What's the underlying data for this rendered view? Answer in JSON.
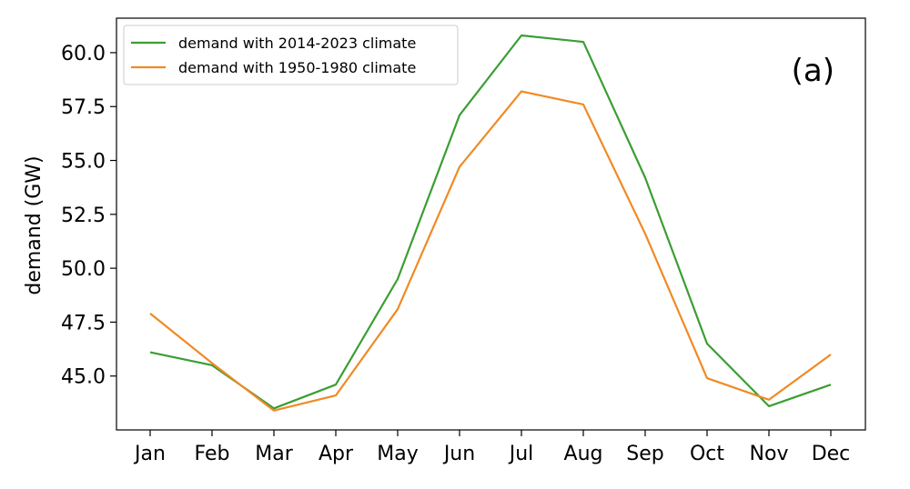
{
  "chart_data": {
    "type": "line",
    "title": "",
    "panel_label": "(a)",
    "xlabel": "",
    "ylabel": "demand (GW)",
    "categories": [
      "Jan",
      "Feb",
      "Mar",
      "Apr",
      "May",
      "Jun",
      "Jul",
      "Aug",
      "Sep",
      "Oct",
      "Nov",
      "Dec"
    ],
    "ylim": [
      42.5,
      61.6
    ],
    "yticks": [
      45.0,
      47.5,
      50.0,
      52.5,
      55.0,
      57.5,
      60.0
    ],
    "ytick_labels": [
      "45.0",
      "47.5",
      "50.0",
      "52.5",
      "55.0",
      "57.5",
      "60.0"
    ],
    "grid": false,
    "legend_position": "top-left",
    "series": [
      {
        "name": "demand with 2014-2023 climate",
        "color": "#3a9e33",
        "values": [
          46.1,
          45.5,
          43.5,
          44.6,
          49.5,
          57.1,
          60.8,
          60.5,
          54.2,
          46.5,
          43.6,
          44.6
        ]
      },
      {
        "name": "demand with 1950-1980 climate",
        "color": "#f08a24",
        "values": [
          47.9,
          45.6,
          43.4,
          44.1,
          48.1,
          54.7,
          58.2,
          57.6,
          51.6,
          44.9,
          43.9,
          46.0
        ]
      }
    ]
  }
}
